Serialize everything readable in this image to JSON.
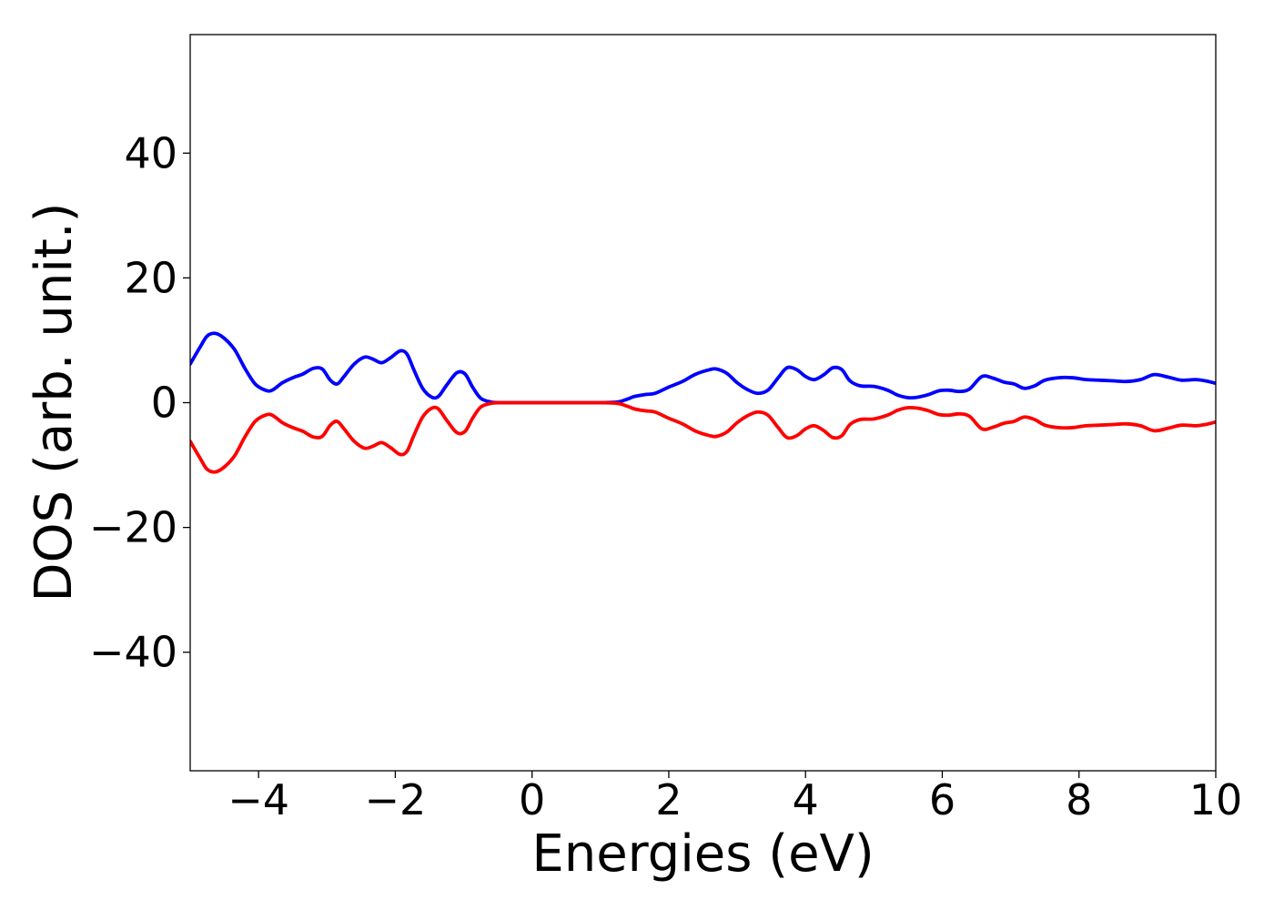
{
  "chart_data": {
    "type": "line",
    "title": "",
    "xlabel": "Energies (eV)",
    "ylabel": "DOS (arb. unit.)",
    "xlim": [
      -5,
      10
    ],
    "ylim": [
      -59,
      59
    ],
    "grid": false,
    "legend": "none",
    "xticks": [
      -4,
      -2,
      0,
      2,
      4,
      6,
      8,
      10
    ],
    "xtick_labels": [
      "−4",
      "−2",
      "0",
      "2",
      "4",
      "6",
      "8",
      "10"
    ],
    "yticks": [
      40,
      20,
      0,
      -20,
      -40
    ],
    "ytick_labels": [
      "40",
      "20",
      "0",
      "−20",
      "−40"
    ],
    "series": [
      {
        "color": "#0000ff",
        "x": [
          -5.0,
          -4.85,
          -4.75,
          -4.63,
          -4.5,
          -4.35,
          -4.2,
          -4.05,
          -3.9,
          -3.8,
          -3.65,
          -3.5,
          -3.35,
          -3.2,
          -3.07,
          -2.95,
          -2.85,
          -2.75,
          -2.6,
          -2.45,
          -2.33,
          -2.2,
          -2.07,
          -1.93,
          -1.83,
          -1.73,
          -1.6,
          -1.47,
          -1.37,
          -1.25,
          -1.1,
          -0.98,
          -0.87,
          -0.75,
          -0.6,
          -0.45,
          -0.3,
          0.0,
          0.5,
          1.0,
          1.25,
          1.4,
          1.5,
          1.65,
          1.8,
          2.0,
          2.2,
          2.4,
          2.6,
          2.7,
          2.85,
          3.0,
          3.15,
          3.3,
          3.45,
          3.6,
          3.73,
          3.87,
          4.0,
          4.13,
          4.27,
          4.4,
          4.53,
          4.65,
          4.8,
          5.0,
          5.2,
          5.35,
          5.5,
          5.65,
          5.8,
          5.95,
          6.1,
          6.25,
          6.4,
          6.58,
          6.75,
          6.9,
          7.05,
          7.2,
          7.35,
          7.5,
          7.7,
          7.9,
          8.1,
          8.3,
          8.5,
          8.7,
          8.9,
          9.1,
          9.3,
          9.5,
          9.7,
          9.85,
          10.0
        ],
        "y": [
          6.2,
          9.0,
          10.7,
          11.1,
          10.3,
          8.5,
          5.5,
          3.0,
          2.0,
          2.0,
          3.2,
          4.0,
          4.6,
          5.5,
          5.4,
          3.6,
          3.0,
          4.2,
          6.2,
          7.3,
          7.0,
          6.4,
          7.2,
          8.3,
          7.8,
          5.3,
          2.3,
          0.9,
          1.0,
          2.8,
          4.8,
          4.6,
          2.5,
          0.7,
          0.1,
          0.0,
          0.0,
          0.0,
          0.0,
          0.0,
          0.1,
          0.6,
          1.0,
          1.3,
          1.5,
          2.5,
          3.4,
          4.6,
          5.3,
          5.4,
          4.7,
          3.2,
          2.1,
          1.5,
          2.0,
          4.0,
          5.6,
          5.3,
          4.2,
          3.7,
          4.5,
          5.6,
          5.3,
          3.5,
          2.7,
          2.6,
          2.0,
          1.2,
          0.8,
          0.9,
          1.3,
          1.9,
          2.0,
          1.8,
          2.2,
          4.2,
          3.9,
          3.3,
          3.0,
          2.3,
          2.7,
          3.6,
          4.0,
          4.0,
          3.7,
          3.6,
          3.5,
          3.4,
          3.7,
          4.5,
          4.1,
          3.6,
          3.7,
          3.5,
          3.1
        ]
      },
      {
        "color": "#ff0000",
        "x": [
          -5.0,
          -4.85,
          -4.75,
          -4.63,
          -4.5,
          -4.35,
          -4.2,
          -4.05,
          -3.9,
          -3.8,
          -3.65,
          -3.5,
          -3.35,
          -3.2,
          -3.07,
          -2.95,
          -2.85,
          -2.75,
          -2.6,
          -2.45,
          -2.33,
          -2.2,
          -2.07,
          -1.93,
          -1.83,
          -1.73,
          -1.6,
          -1.47,
          -1.37,
          -1.25,
          -1.1,
          -0.98,
          -0.87,
          -0.75,
          -0.6,
          -0.45,
          -0.3,
          0.0,
          0.5,
          1.0,
          1.25,
          1.4,
          1.5,
          1.65,
          1.8,
          2.0,
          2.2,
          2.4,
          2.6,
          2.7,
          2.85,
          3.0,
          3.15,
          3.3,
          3.45,
          3.6,
          3.73,
          3.87,
          4.0,
          4.13,
          4.27,
          4.4,
          4.53,
          4.65,
          4.8,
          5.0,
          5.2,
          5.35,
          5.5,
          5.65,
          5.8,
          5.95,
          6.1,
          6.25,
          6.4,
          6.58,
          6.75,
          6.9,
          7.05,
          7.2,
          7.35,
          7.5,
          7.7,
          7.9,
          8.1,
          8.3,
          8.5,
          8.7,
          8.9,
          9.1,
          9.3,
          9.5,
          9.7,
          9.85,
          10.0
        ],
        "y": [
          -6.2,
          -9.0,
          -10.7,
          -11.1,
          -10.3,
          -8.5,
          -5.5,
          -3.0,
          -2.0,
          -2.0,
          -3.2,
          -4.0,
          -4.6,
          -5.5,
          -5.4,
          -3.6,
          -3.0,
          -4.2,
          -6.2,
          -7.3,
          -7.0,
          -6.4,
          -7.2,
          -8.3,
          -7.8,
          -5.3,
          -2.3,
          -0.9,
          -1.0,
          -2.8,
          -4.8,
          -4.6,
          -2.5,
          -0.7,
          -0.1,
          0.0,
          0.0,
          0.0,
          0.0,
          0.0,
          -0.1,
          -0.6,
          -1.0,
          -1.3,
          -1.5,
          -2.5,
          -3.4,
          -4.6,
          -5.3,
          -5.4,
          -4.7,
          -3.2,
          -2.1,
          -1.5,
          -2.0,
          -4.0,
          -5.6,
          -5.3,
          -4.2,
          -3.7,
          -4.5,
          -5.6,
          -5.3,
          -3.5,
          -2.7,
          -2.6,
          -2.0,
          -1.2,
          -0.8,
          -0.9,
          -1.3,
          -1.9,
          -2.0,
          -1.8,
          -2.2,
          -4.2,
          -3.9,
          -3.3,
          -3.0,
          -2.3,
          -2.7,
          -3.6,
          -4.0,
          -4.0,
          -3.7,
          -3.6,
          -3.5,
          -3.4,
          -3.7,
          -4.5,
          -4.1,
          -3.6,
          -3.7,
          -3.5,
          -3.1
        ]
      }
    ]
  }
}
